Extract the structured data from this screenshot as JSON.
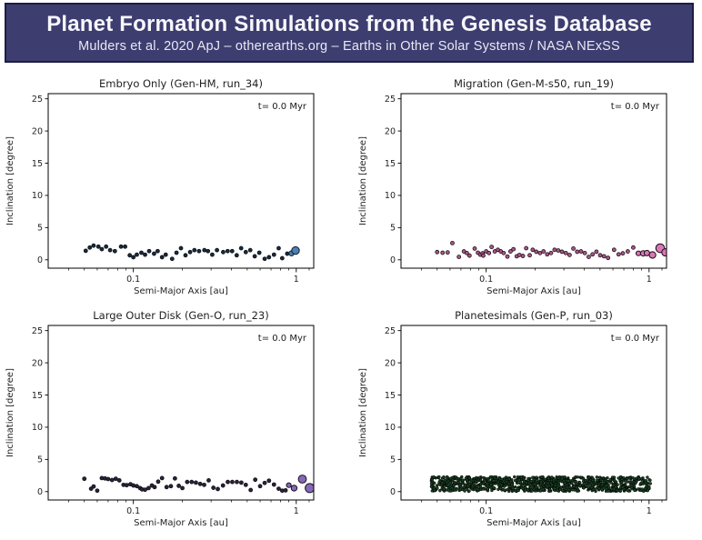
{
  "header": {
    "title": "Planet Formation Simulations from the Genesis Database",
    "subtitle": "Mulders et al. 2020 ApJ – otherearths.org – Earths in Other Solar Systems / NASA NExSS",
    "bg_color": "#3d3d70",
    "border_color": "#1d1d44",
    "text_color": "#f7f7fb"
  },
  "chart_data": [
    {
      "id": "embryo-only",
      "type": "scatter",
      "title": "Embryo Only (Gen-HM, run_34)",
      "annotation": "t= 0.0 Myr",
      "xlabel": "Semi-Major Axis [au]",
      "ylabel": "Inclination [degree]",
      "xscale": "log",
      "xlim": [
        0.03,
        1.28
      ],
      "ylim": [
        -1.3,
        25.8
      ],
      "xticks": [
        0.1,
        1
      ],
      "xtick_labels": [
        "0.1",
        "1"
      ],
      "yticks": [
        0,
        5,
        10,
        15,
        20,
        25
      ],
      "grid": false,
      "legend": "none",
      "marker": {
        "fill": "#1b2a3a",
        "edge": "#0c1219",
        "radius": 2
      },
      "highlight": {
        "fill": "#4a80b5",
        "edge": "#12202e"
      },
      "points": [
        [
          0.051,
          1.4
        ],
        [
          0.054,
          1.9
        ],
        [
          0.057,
          2.2
        ],
        [
          0.061,
          2.05
        ],
        [
          0.064,
          1.65
        ],
        [
          0.068,
          2.05
        ],
        [
          0.072,
          1.5
        ],
        [
          0.077,
          1.35
        ],
        [
          0.084,
          2.05
        ],
        [
          0.089,
          2.05
        ],
        [
          0.095,
          0.7
        ],
        [
          0.1,
          0.4
        ],
        [
          0.105,
          0.8
        ],
        [
          0.112,
          1.1
        ],
        [
          0.118,
          0.8
        ],
        [
          0.125,
          1.35
        ],
        [
          0.134,
          0.95
        ],
        [
          0.141,
          1.35
        ],
        [
          0.15,
          0.4
        ],
        [
          0.158,
          0.8
        ],
        [
          0.173,
          0.15
        ],
        [
          0.184,
          1.1
        ],
        [
          0.196,
          1.8
        ],
        [
          0.209,
          0.7
        ],
        [
          0.223,
          1.2
        ],
        [
          0.237,
          1.5
        ],
        [
          0.253,
          1.35
        ],
        [
          0.273,
          1.5
        ],
        [
          0.287,
          1.35
        ],
        [
          0.305,
          0.8
        ],
        [
          0.326,
          1.5
        ],
        [
          0.356,
          1.2
        ],
        [
          0.379,
          1.35
        ],
        [
          0.404,
          1.35
        ],
        [
          0.431,
          0.7
        ],
        [
          0.459,
          1.8
        ],
        [
          0.49,
          1.2
        ],
        [
          0.522,
          1.5
        ],
        [
          0.556,
          0.55
        ],
        [
          0.593,
          1.1
        ],
        [
          0.64,
          0.15
        ],
        [
          0.68,
          0.4
        ],
        [
          0.73,
          0.8
        ],
        [
          0.78,
          1.8
        ],
        [
          0.82,
          0.25
        ],
        [
          0.88,
          0.95
        ]
      ],
      "highlight_points": [
        [
          0.935,
          1.0,
          2.8
        ],
        [
          0.99,
          1.45,
          4.2
        ]
      ]
    },
    {
      "id": "migration",
      "type": "scatter",
      "title": "Migration (Gen-M-s50, run_19)",
      "annotation": "t= 0.0 Myr",
      "xlabel": "Semi-Major Axis [au]",
      "ylabel": "Inclination [degree]",
      "xscale": "log",
      "xlim": [
        0.03,
        1.28
      ],
      "ylim": [
        -1.3,
        25.8
      ],
      "xticks": [
        0.1,
        1
      ],
      "xtick_labels": [
        "0.1",
        "1"
      ],
      "yticks": [
        0,
        5,
        10,
        15,
        20,
        25
      ],
      "grid": false,
      "legend": "none",
      "marker": {
        "fill": "#a85788",
        "edge": "#1f1018",
        "radius": 2
      },
      "highlight": {
        "fill": "#d878b8",
        "edge": "#1a0d14"
      },
      "points": [
        [
          0.05,
          1.2
        ],
        [
          0.054,
          1.1
        ],
        [
          0.058,
          1.15
        ],
        [
          0.062,
          2.6
        ],
        [
          0.068,
          0.45
        ],
        [
          0.073,
          1.3
        ],
        [
          0.076,
          1.05
        ],
        [
          0.079,
          0.65
        ],
        [
          0.085,
          1.75
        ],
        [
          0.089,
          1.1
        ],
        [
          0.092,
          0.8
        ],
        [
          0.095,
          1.0
        ],
        [
          0.096,
          0.65
        ],
        [
          0.1,
          1.3
        ],
        [
          0.104,
          1.05
        ],
        [
          0.108,
          2.0
        ],
        [
          0.113,
          1.3
        ],
        [
          0.118,
          1.55
        ],
        [
          0.123,
          1.3
        ],
        [
          0.128,
          1.05
        ],
        [
          0.135,
          0.5
        ],
        [
          0.141,
          1.3
        ],
        [
          0.147,
          1.65
        ],
        [
          0.154,
          0.55
        ],
        [
          0.16,
          0.75
        ],
        [
          0.168,
          0.6
        ],
        [
          0.176,
          1.8
        ],
        [
          0.185,
          0.7
        ],
        [
          0.193,
          1.55
        ],
        [
          0.203,
          1.25
        ],
        [
          0.214,
          1.05
        ],
        [
          0.225,
          1.3
        ],
        [
          0.237,
          0.85
        ],
        [
          0.25,
          1.05
        ],
        [
          0.263,
          1.55
        ],
        [
          0.277,
          1.45
        ],
        [
          0.292,
          1.25
        ],
        [
          0.308,
          1.05
        ],
        [
          0.325,
          0.75
        ],
        [
          0.343,
          1.75
        ],
        [
          0.362,
          1.25
        ],
        [
          0.382,
          1.3
        ],
        [
          0.403,
          1.05
        ],
        [
          0.426,
          0.45
        ],
        [
          0.45,
          0.85
        ],
        [
          0.475,
          1.25
        ],
        [
          0.501,
          0.7
        ],
        [
          0.529,
          0.55
        ],
        [
          0.56,
          0.3
        ],
        [
          0.61,
          1.55
        ],
        [
          0.65,
          0.85
        ],
        [
          0.69,
          1.0
        ],
        [
          0.74,
          1.3
        ],
        [
          0.8,
          1.9
        ]
      ],
      "highlight_points": [
        [
          0.86,
          1.0,
          2.6
        ],
        [
          0.92,
          1.0,
          3.0
        ],
        [
          0.97,
          1.05,
          3.0
        ],
        [
          1.05,
          0.75,
          3.6
        ],
        [
          1.17,
          1.8,
          4.8
        ],
        [
          1.26,
          1.15,
          4.0
        ]
      ]
    },
    {
      "id": "large-outer-disk",
      "type": "scatter",
      "title": "Large Outer Disk (Gen-O, run_23)",
      "annotation": "t= 0.0 Myr",
      "xlabel": "Semi-Major Axis [au]",
      "ylabel": "Inclination [degree]",
      "xscale": "log",
      "xlim": [
        0.03,
        1.28
      ],
      "ylim": [
        -1.3,
        25.8
      ],
      "xticks": [
        0.1,
        1
      ],
      "xtick_labels": [
        "0.1",
        "1"
      ],
      "yticks": [
        0,
        5,
        10,
        15,
        20,
        25
      ],
      "grid": false,
      "legend": "none",
      "marker": {
        "fill": "#2a2336",
        "edge": "#120e1a",
        "radius": 2
      },
      "highlight": {
        "fill": "#8669b5",
        "edge": "#1a1226"
      },
      "points": [
        [
          0.05,
          2.0
        ],
        [
          0.055,
          0.45
        ],
        [
          0.057,
          0.8
        ],
        [
          0.06,
          0.15
        ],
        [
          0.064,
          2.1
        ],
        [
          0.067,
          2.05
        ],
        [
          0.07,
          1.95
        ],
        [
          0.074,
          1.8
        ],
        [
          0.078,
          2.0
        ],
        [
          0.082,
          1.75
        ],
        [
          0.087,
          1.05
        ],
        [
          0.091,
          1.0
        ],
        [
          0.096,
          1.15
        ],
        [
          0.1,
          0.95
        ],
        [
          0.105,
          0.85
        ],
        [
          0.11,
          0.55
        ],
        [
          0.113,
          0.35
        ],
        [
          0.118,
          0.3
        ],
        [
          0.124,
          0.55
        ],
        [
          0.13,
          0.95
        ],
        [
          0.135,
          0.7
        ],
        [
          0.142,
          1.55
        ],
        [
          0.15,
          2.1
        ],
        [
          0.16,
          0.7
        ],
        [
          0.17,
          0.85
        ],
        [
          0.18,
          2.05
        ],
        [
          0.19,
          0.9
        ],
        [
          0.2,
          0.55
        ],
        [
          0.214,
          1.5
        ],
        [
          0.228,
          1.5
        ],
        [
          0.242,
          1.4
        ],
        [
          0.257,
          1.2
        ],
        [
          0.272,
          1.05
        ],
        [
          0.29,
          1.75
        ],
        [
          0.31,
          0.6
        ],
        [
          0.33,
          0.4
        ],
        [
          0.355,
          0.95
        ],
        [
          0.38,
          1.5
        ],
        [
          0.405,
          1.5
        ],
        [
          0.432,
          1.5
        ],
        [
          0.46,
          1.4
        ],
        [
          0.49,
          1.05
        ],
        [
          0.525,
          0.25
        ],
        [
          0.56,
          1.85
        ],
        [
          0.6,
          0.85
        ],
        [
          0.64,
          1.35
        ],
        [
          0.68,
          1.7
        ],
        [
          0.73,
          1.1
        ],
        [
          0.78,
          0.45
        ],
        [
          0.82,
          0.15
        ],
        [
          0.86,
          0.2
        ]
      ],
      "highlight_points": [
        [
          0.9,
          1.0,
          2.6
        ],
        [
          0.97,
          0.55,
          3.2
        ],
        [
          1.09,
          1.95,
          4.4
        ],
        [
          1.21,
          0.55,
          5.0
        ]
      ]
    },
    {
      "id": "planetesimals",
      "type": "scatter",
      "title": "Planetesimals (Gen-P, run_03)",
      "annotation": "t= 0.0 Myr",
      "xlabel": "Semi-Major Axis [au]",
      "ylabel": "Inclination [degree]",
      "xscale": "log",
      "xlim": [
        0.03,
        1.28
      ],
      "ylim": [
        -1.3,
        25.8
      ],
      "xticks": [
        0.1,
        1
      ],
      "xtick_labels": [
        "0.1",
        "1"
      ],
      "yticks": [
        0,
        5,
        10,
        15,
        20,
        25
      ],
      "grid": false,
      "legend": "none",
      "marker": {
        "fill": "#1d4527",
        "edge": "#050b06",
        "radius": 1.4
      },
      "highlight": {
        "fill": "#1d4527",
        "edge": "#050b06"
      },
      "points": [],
      "highlight_points": [],
      "points_band": {
        "n": 1000,
        "x_min": 0.046,
        "x_max": 1.02,
        "y_min": 0.05,
        "y_max": 2.3,
        "seed": 7,
        "note": "dense uniform band of planetesimals; individual points not resolvable"
      }
    }
  ]
}
